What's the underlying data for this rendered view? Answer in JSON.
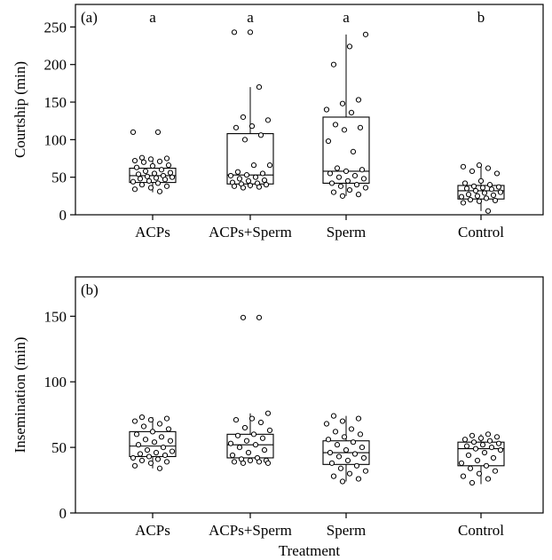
{
  "chart_data": [
    {
      "type": "box",
      "panel_label": "(a)",
      "ylabel": "Courtship (min)",
      "xlabel": "",
      "ylim": [
        0,
        280
      ],
      "yticks": [
        0,
        50,
        100,
        150,
        200,
        250
      ],
      "categories": [
        "ACPs",
        "ACPs+Sperm",
        "Sperm",
        "Control"
      ],
      "significance_letters": [
        "a",
        "a",
        "a",
        "b"
      ],
      "boxes": [
        {
          "whisker_low": 30,
          "q1": 43,
          "median": 52,
          "q3": 62,
          "whisker_high": 75
        },
        {
          "whisker_low": 35,
          "q1": 41,
          "median": 53,
          "q3": 108,
          "whisker_high": 170
        },
        {
          "whisker_low": 25,
          "q1": 42,
          "median": 58,
          "q3": 130,
          "whisker_high": 240
        },
        {
          "whisker_low": 5,
          "q1": 21,
          "median": 32,
          "q3": 39,
          "whisker_high": 64
        }
      ],
      "points": [
        [
          110,
          110,
          76,
          75,
          74,
          72,
          71,
          70,
          66,
          65,
          63,
          60,
          58,
          56,
          55,
          54,
          52,
          51,
          50,
          49,
          48,
          47,
          45,
          44,
          42,
          40,
          38,
          36,
          34,
          31
        ],
        [
          243,
          243,
          170,
          130,
          126,
          118,
          116,
          106,
          100,
          66,
          66,
          57,
          55,
          53,
          52,
          50,
          48,
          46,
          45,
          43,
          42,
          41,
          40,
          39,
          38,
          37,
          36
        ],
        [
          240,
          224,
          200,
          153,
          148,
          140,
          136,
          120,
          116,
          113,
          98,
          84,
          62,
          60,
          58,
          55,
          52,
          50,
          48,
          45,
          42,
          40,
          38,
          36,
          33,
          30,
          27,
          25
        ],
        [
          66,
          64,
          62,
          58,
          55,
          45,
          42,
          40,
          38,
          37,
          36,
          35,
          34,
          32,
          30,
          29,
          27,
          26,
          25,
          24,
          22,
          20,
          19,
          18,
          16,
          5
        ]
      ]
    },
    {
      "type": "box",
      "panel_label": "(b)",
      "ylabel": "Insemination (min)",
      "xlabel": "Treatment",
      "ylim": [
        0,
        180
      ],
      "yticks": [
        0,
        50,
        100,
        150
      ],
      "categories": [
        "ACPs",
        "ACPs+Sperm",
        "Sperm",
        "Control"
      ],
      "boxes": [
        {
          "whisker_low": 34,
          "q1": 43,
          "median": 51,
          "q3": 62,
          "whisker_high": 73
        },
        {
          "whisker_low": 38,
          "q1": 42,
          "median": 52,
          "q3": 60,
          "whisker_high": 76
        },
        {
          "whisker_low": 24,
          "q1": 37,
          "median": 46,
          "q3": 55,
          "whisker_high": 74
        },
        {
          "whisker_low": 22,
          "q1": 36,
          "median": 49,
          "q3": 54,
          "whisker_high": 60
        }
      ],
      "points": [
        [
          73,
          72,
          71,
          70,
          68,
          66,
          64,
          62,
          60,
          58,
          56,
          55,
          54,
          52,
          50,
          48,
          47,
          46,
          45,
          44,
          43,
          42,
          41,
          40,
          39,
          38,
          36,
          34
        ],
        [
          149,
          149,
          76,
          72,
          71,
          69,
          65,
          63,
          60,
          59,
          57,
          55,
          53,
          52,
          50,
          48,
          46,
          44,
          42,
          41,
          40,
          40,
          39,
          39,
          38,
          38
        ],
        [
          74,
          72,
          70,
          68,
          64,
          62,
          60,
          58,
          56,
          54,
          52,
          50,
          48,
          46,
          45,
          43,
          42,
          40,
          38,
          36,
          34,
          32,
          30,
          28,
          26,
          24
        ],
        [
          60,
          59,
          58,
          57,
          56,
          55,
          54,
          53,
          52,
          51,
          50,
          49,
          48,
          46,
          44,
          42,
          40,
          38,
          36,
          34,
          32,
          30,
          28,
          26,
          23
        ]
      ]
    }
  ]
}
